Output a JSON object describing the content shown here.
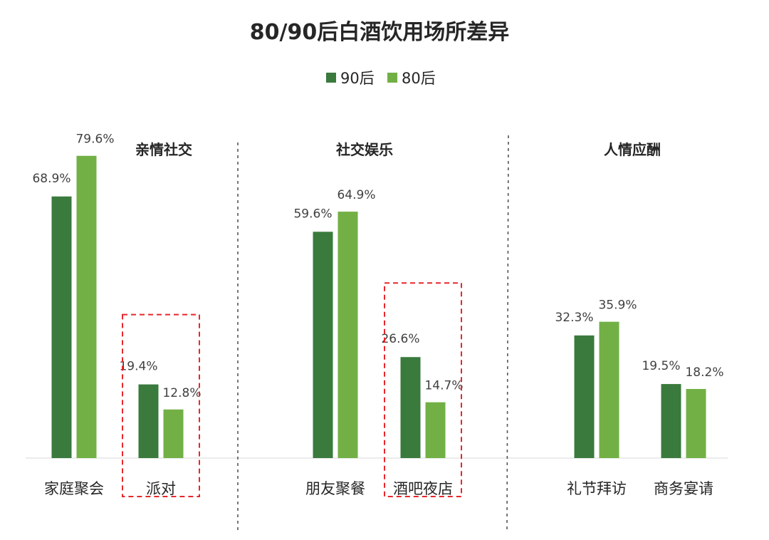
{
  "colors": {
    "series_90": "#3a7a3d",
    "series_80": "#72b045",
    "divider": "#555555",
    "highlight_box": "#e8262b",
    "axis": "#d9d9d9"
  },
  "chart_data": {
    "type": "bar",
    "title": "80/90后白酒饮用场所差异",
    "legend_position": "top",
    "grid": false,
    "ylim": [
      0,
      85
    ],
    "series": [
      {
        "name": "90后"
      },
      {
        "name": "80后"
      }
    ],
    "groups": [
      {
        "title": "亲情社交",
        "categories": [
          {
            "label": "家庭聚会",
            "values": [
              68.9,
              79.6
            ],
            "value_labels": [
              "68.9%",
              "79.6%"
            ],
            "highlighted": false
          },
          {
            "label": "派对",
            "values": [
              19.4,
              12.8
            ],
            "value_labels": [
              "19.4%",
              "12.8%"
            ],
            "highlighted": true
          }
        ]
      },
      {
        "title": "社交娱乐",
        "categories": [
          {
            "label": "朋友聚餐",
            "values": [
              59.6,
              64.9
            ],
            "value_labels": [
              "59.6%",
              "64.9%"
            ],
            "highlighted": false
          },
          {
            "label": "酒吧夜店",
            "values": [
              26.6,
              14.7
            ],
            "value_labels": [
              "26.6%",
              "14.7%"
            ],
            "highlighted": true
          }
        ]
      },
      {
        "title": "人情应酬",
        "categories": [
          {
            "label": "礼节拜访",
            "values": [
              32.3,
              35.9
            ],
            "value_labels": [
              "32.3%",
              "35.9%"
            ],
            "highlighted": false
          },
          {
            "label": "商务宴请",
            "values": [
              19.5,
              18.2
            ],
            "value_labels": [
              "19.5%",
              "18.2%"
            ],
            "highlighted": false
          }
        ]
      }
    ]
  }
}
